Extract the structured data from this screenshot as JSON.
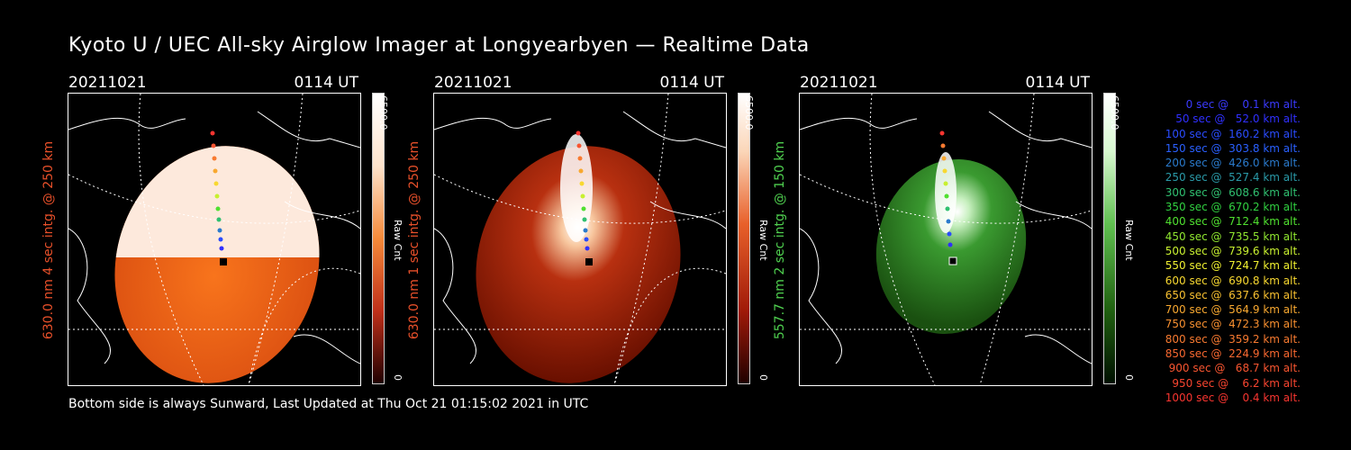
{
  "title": "Kyoto U / UEC All-sky Airglow Imager at Longyearbyen — Realtime Data",
  "footer": "Bottom side is always Sunward, Last Updated at Thu Oct 21 01:15:02 2021 in UTC",
  "panels": [
    {
      "date": "20211021",
      "time": "0114 UT",
      "ylabel": "630.0 nm 4 sec intg. @ 250 km",
      "ylabel_color": "#e8502a",
      "cbar_max": "6500.0",
      "cbar_unit": "Raw Cnt",
      "cbar_min": "0",
      "colormap": "white-orange"
    },
    {
      "date": "20211021",
      "time": "0114 UT",
      "ylabel": "630.0 nm 1 sec intg. @ 250 km",
      "ylabel_color": "#e8502a",
      "cbar_max": "6500.0",
      "cbar_unit": "Raw Cnt",
      "cbar_min": "0",
      "colormap": "white-red"
    },
    {
      "date": "20211021",
      "time": "0114 UT",
      "ylabel": "557.7 nm 2 sec intg. @ 150 km",
      "ylabel_color": "#4fd04f",
      "cbar_max": "6500.0",
      "cbar_unit": "Raw Cnt",
      "cbar_min": "0",
      "colormap": "white-green"
    }
  ],
  "legend": [
    {
      "text": "   0 sec @    0.1 km alt.",
      "color": "#3a3aff"
    },
    {
      "text": "  50 sec @   52.0 km alt.",
      "color": "#3030ff"
    },
    {
      "text": " 100 sec @  160.2 km alt.",
      "color": "#2a4cff"
    },
    {
      "text": " 150 sec @  303.8 km alt.",
      "color": "#2a60ff"
    },
    {
      "text": " 200 sec @  426.0 km alt.",
      "color": "#2a7acc"
    },
    {
      "text": " 250 sec @  527.4 km alt.",
      "color": "#2a9aa8"
    },
    {
      "text": " 300 sec @  608.6 km alt.",
      "color": "#30c070"
    },
    {
      "text": " 350 sec @  670.2 km alt.",
      "color": "#30d040"
    },
    {
      "text": " 400 sec @  712.4 km alt.",
      "color": "#50e030"
    },
    {
      "text": " 450 sec @  735.5 km alt.",
      "color": "#90e830"
    },
    {
      "text": " 500 sec @  739.6 km alt.",
      "color": "#c8f030"
    },
    {
      "text": " 550 sec @  724.7 km alt.",
      "color": "#f0f030"
    },
    {
      "text": " 600 sec @  690.8 km alt.",
      "color": "#f8d830"
    },
    {
      "text": " 650 sec @  637.6 km alt.",
      "color": "#f8c030"
    },
    {
      "text": " 700 sec @  564.9 km alt.",
      "color": "#f8a830"
    },
    {
      "text": " 750 sec @  472.3 km alt.",
      "color": "#f89030"
    },
    {
      "text": " 800 sec @  359.2 km alt.",
      "color": "#f87a30"
    },
    {
      "text": " 850 sec @  224.9 km alt.",
      "color": "#f86830"
    },
    {
      "text": " 900 sec @   68.7 km alt.",
      "color": "#f85530"
    },
    {
      "text": " 950 sec @    6.2 km alt.",
      "color": "#f84530"
    },
    {
      "text": "1000 sec @    0.4 km alt.",
      "color": "#f83530"
    }
  ]
}
